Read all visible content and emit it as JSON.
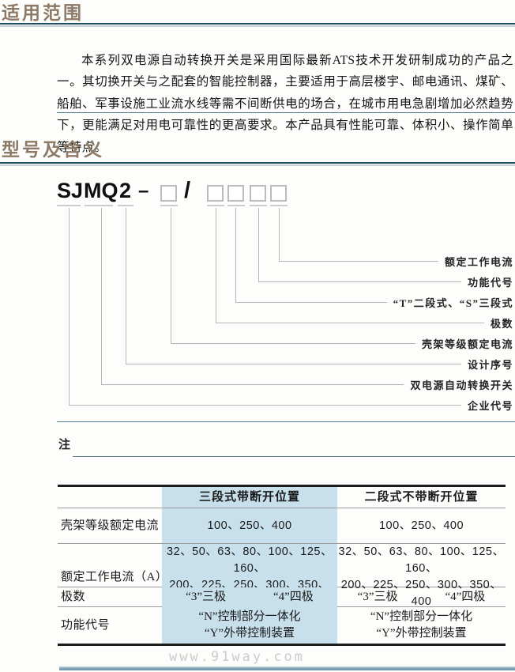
{
  "sections": {
    "scope_title": "适用范围",
    "model_title": "型号及含义"
  },
  "intro_paragraph": "本系列双电源自动转换开关是采用国际最新ATS技术开发研制成功的产品之一。其切换开关与之配套的智能控制器，主要适用于高层楼宇、邮电通讯、煤矿、船舶、军事设施工业流水线等需不间断供电的场合，在城市用电急剧增加必然趋势下，更能满足对用电可靠性的更高要求。本产品具有性能可靠、体积小、操作简单等特点。",
  "model_diagram": {
    "code_segments": [
      "SJ",
      "MQ",
      "2"
    ],
    "separator_dash": "–",
    "separator_slash": "/",
    "labels": [
      "额定工作电流",
      "功能代号",
      "“T”二段式、“S”三段式",
      "极数",
      "壳架等级额定电流",
      "设计序号",
      "双电源自动转换开关",
      "企业代号"
    ]
  },
  "note_label": "注",
  "spec_table": {
    "columns": [
      "",
      "三段式带断开位置",
      "二段式不带断开位置"
    ],
    "rows": [
      {
        "label": "壳架等级额定电流",
        "cells": [
          "100、250、400",
          "100、250、400"
        ]
      },
      {
        "label": "额定工作电流（A）",
        "cells": [
          [
            "32、50、63、80、100、125、160、",
            "200、225、250、300、350、400"
          ],
          [
            "32、50、63、80、100、125、160、",
            "200、225、250、300、350、400"
          ]
        ]
      },
      {
        "label": "极数",
        "cells": [
          "“3”三极　　　　“4”四极",
          "“3”三极　　　　“4”四极"
        ]
      },
      {
        "label": "功能代号",
        "cells": [
          [
            "“N”控制部分一体化",
            "“Y”外带控制装置"
          ],
          [
            "“N”控制部分一体化",
            "“Y”外带控制装置"
          ]
        ]
      }
    ]
  },
  "watermark": "www.91way.com",
  "colors": {
    "title_brown": "#8c7a66",
    "rule_dark": "#214b60",
    "rule_light": "#c6d0d6",
    "thin_line_teal": "#577f91",
    "table_border": "#1c1c1c",
    "table_row_line": "#9a9a9a",
    "highlight_column_blue": "#c8e0ec",
    "connector_gray": "#b6b6b6",
    "watermark_gray": "#cbcbcb",
    "bottom_bar_blue": "#7ba0b4"
  }
}
